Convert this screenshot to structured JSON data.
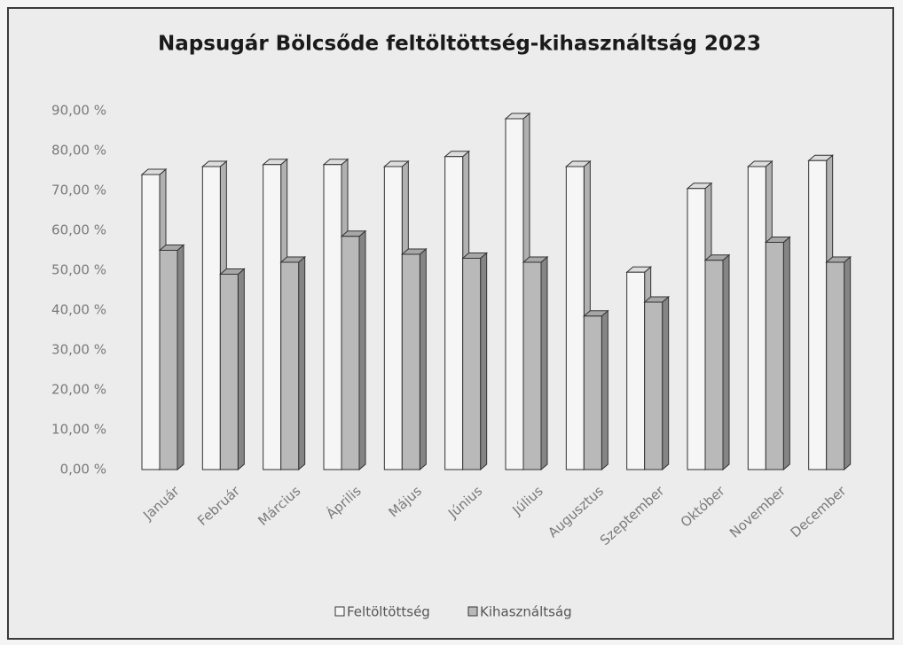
{
  "chart_data": {
    "type": "bar3d",
    "title": "Napsugár Bölcsőde feltöltöttség-kihasználtság 2023",
    "categories": [
      "Január",
      "Február",
      "Március",
      "Április",
      "Május",
      "Június",
      "Július",
      "Augusztus",
      "Szeptember",
      "Október",
      "November",
      "December"
    ],
    "series": [
      {
        "name": "Feltöltöttség",
        "color": "#f6f6f6",
        "values": [
          74,
          76,
          76.5,
          76.5,
          76,
          78.5,
          88,
          76,
          49.5,
          70.5,
          76,
          77.5
        ]
      },
      {
        "name": "Kihasználtság",
        "color": "#b9b9b9",
        "values": [
          55,
          49,
          52,
          58.5,
          54,
          53,
          52,
          38.5,
          42,
          52.5,
          57,
          52
        ]
      }
    ],
    "ylim": [
      0,
      90
    ],
    "yticks": [
      {
        "value": 0,
        "label": "0,00 %"
      },
      {
        "value": 10,
        "label": "10,00 %"
      },
      {
        "value": 20,
        "label": "20,00 %"
      },
      {
        "value": 30,
        "label": "30,00 %"
      },
      {
        "value": 40,
        "label": "40,00 %"
      },
      {
        "value": 50,
        "label": "50,00 %"
      },
      {
        "value": 60,
        "label": "60,00 %"
      },
      {
        "value": 70,
        "label": "70,00 %"
      },
      {
        "value": 80,
        "label": "80,00 %"
      },
      {
        "value": 90,
        "label": "90,00 %"
      }
    ],
    "legend": "bottom",
    "grid": false
  }
}
